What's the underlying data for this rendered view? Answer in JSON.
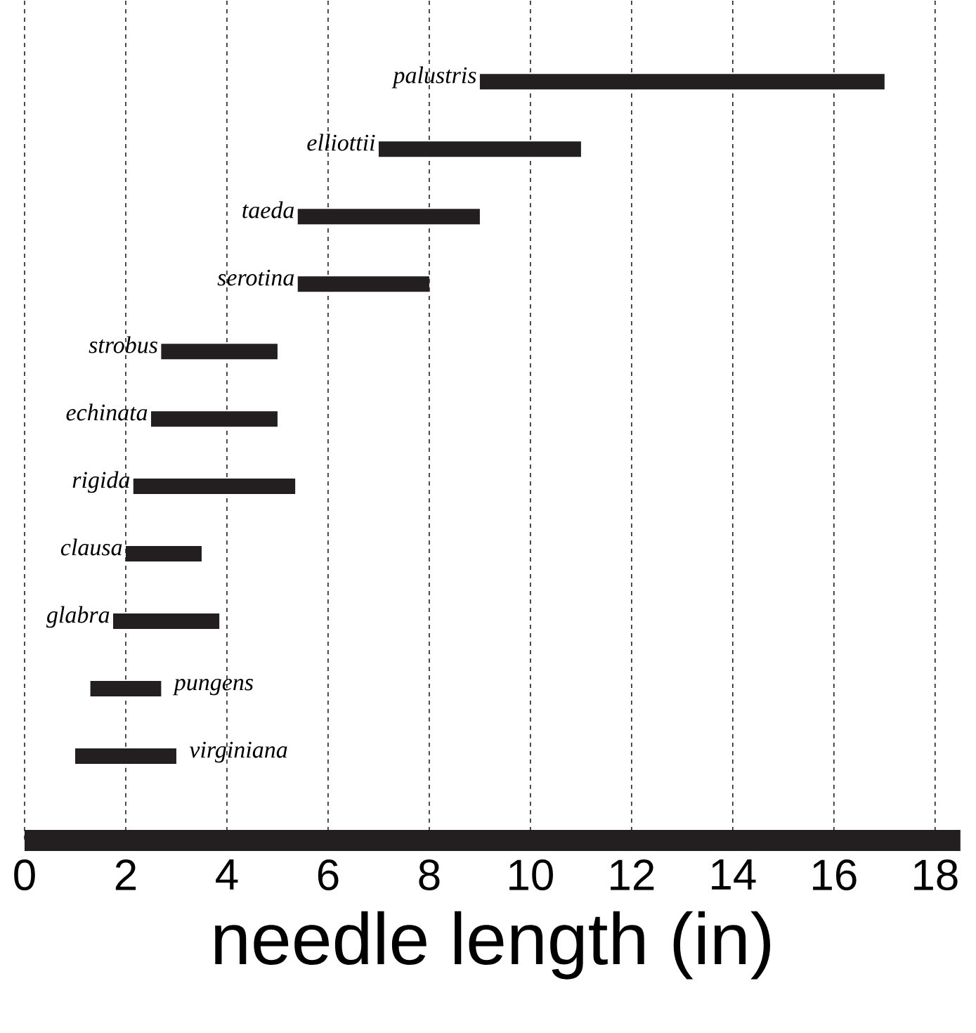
{
  "chart_data": {
    "type": "bar",
    "orientation": "horizontal",
    "xlabel": "needle  length (in)",
    "categories": [
      "palustris",
      "elliottii",
      "taeda",
      "serotina",
      "strobus",
      "echinata",
      "rigida",
      "clausa",
      "glabra",
      "pungens",
      "virginiana"
    ],
    "base": [
      9,
      7,
      5.4,
      5.4,
      2.7,
      2.5,
      2.15,
      2,
      1.75,
      1.3,
      1
    ],
    "values": [
      8,
      4,
      3.6,
      2.6,
      2.3,
      2.5,
      3.2,
      1.5,
      2.1,
      1.4,
      2
    ],
    "color": "#231f20",
    "xlim": [
      0,
      18.5
    ],
    "xticks": [
      0,
      2,
      4,
      6,
      8,
      10,
      12,
      14,
      16,
      18
    ],
    "grid": "x"
  }
}
